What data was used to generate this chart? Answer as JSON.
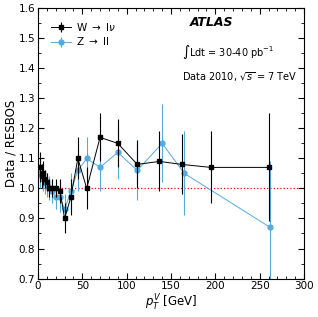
{
  "W_x": [
    2,
    4,
    6,
    8,
    10,
    13,
    16,
    20,
    25,
    30,
    37,
    45,
    55,
    70,
    90,
    112,
    137,
    162,
    195,
    260
  ],
  "W_y": [
    1.07,
    1.04,
    1.05,
    1.03,
    1.02,
    1.0,
    1.0,
    1.0,
    0.99,
    0.9,
    0.97,
    1.1,
    1.0,
    1.17,
    1.15,
    1.08,
    1.09,
    1.08,
    1.07,
    1.07
  ],
  "W_yerr_lo": [
    0.05,
    0.04,
    0.04,
    0.03,
    0.03,
    0.03,
    0.03,
    0.03,
    0.04,
    0.05,
    0.06,
    0.07,
    0.07,
    0.08,
    0.08,
    0.08,
    0.1,
    0.1,
    0.12,
    0.18
  ],
  "W_yerr_hi": [
    0.05,
    0.04,
    0.04,
    0.03,
    0.03,
    0.03,
    0.03,
    0.03,
    0.04,
    0.05,
    0.06,
    0.07,
    0.07,
    0.08,
    0.08,
    0.08,
    0.1,
    0.1,
    0.12,
    0.18
  ],
  "Z_x": [
    2,
    4,
    6,
    8,
    10,
    13,
    16,
    20,
    25,
    30,
    37,
    45,
    55,
    70,
    90,
    112,
    140,
    165,
    262
  ],
  "Z_y": [
    1.05,
    1.04,
    1.03,
    1.02,
    1.01,
    1.0,
    0.99,
    0.97,
    0.97,
    0.93,
    0.99,
    1.06,
    1.1,
    1.07,
    1.12,
    1.06,
    1.15,
    1.05,
    0.87
  ],
  "Z_yerr_lo": [
    0.05,
    0.04,
    0.04,
    0.04,
    0.04,
    0.04,
    0.04,
    0.04,
    0.05,
    0.05,
    0.06,
    0.07,
    0.07,
    0.08,
    0.09,
    0.1,
    0.13,
    0.14,
    0.22
  ],
  "Z_yerr_hi": [
    0.05,
    0.04,
    0.04,
    0.04,
    0.04,
    0.04,
    0.04,
    0.04,
    0.05,
    0.05,
    0.06,
    0.07,
    0.07,
    0.08,
    0.09,
    0.1,
    0.13,
    0.14,
    0.22
  ],
  "xlabel": "$p_T^V$ [GeV]",
  "ylabel": "Data / RESBOS",
  "xlim": [
    0,
    300
  ],
  "ylim": [
    0.7,
    1.6
  ],
  "yticks": [
    0.7,
    0.8,
    0.9,
    1.0,
    1.1,
    1.2,
    1.3,
    1.4,
    1.5,
    1.6
  ],
  "xticks": [
    0,
    50,
    100,
    150,
    200,
    250,
    300
  ],
  "atlas_label": "ATLAS",
  "lumi_label": "$\\int$Ldt = 30-40 pb$^{-1}$",
  "data_label": "Data 2010, $\\sqrt{s}$ = 7 TeV",
  "W_label": "W $\\rightarrow$ l$\\nu$",
  "Z_label": "Z $\\rightarrow$ ll",
  "W_color": "#000000",
  "Z_color": "#55aadd",
  "ref_line_color": "#ff0000",
  "bg_color": "#ffffff"
}
